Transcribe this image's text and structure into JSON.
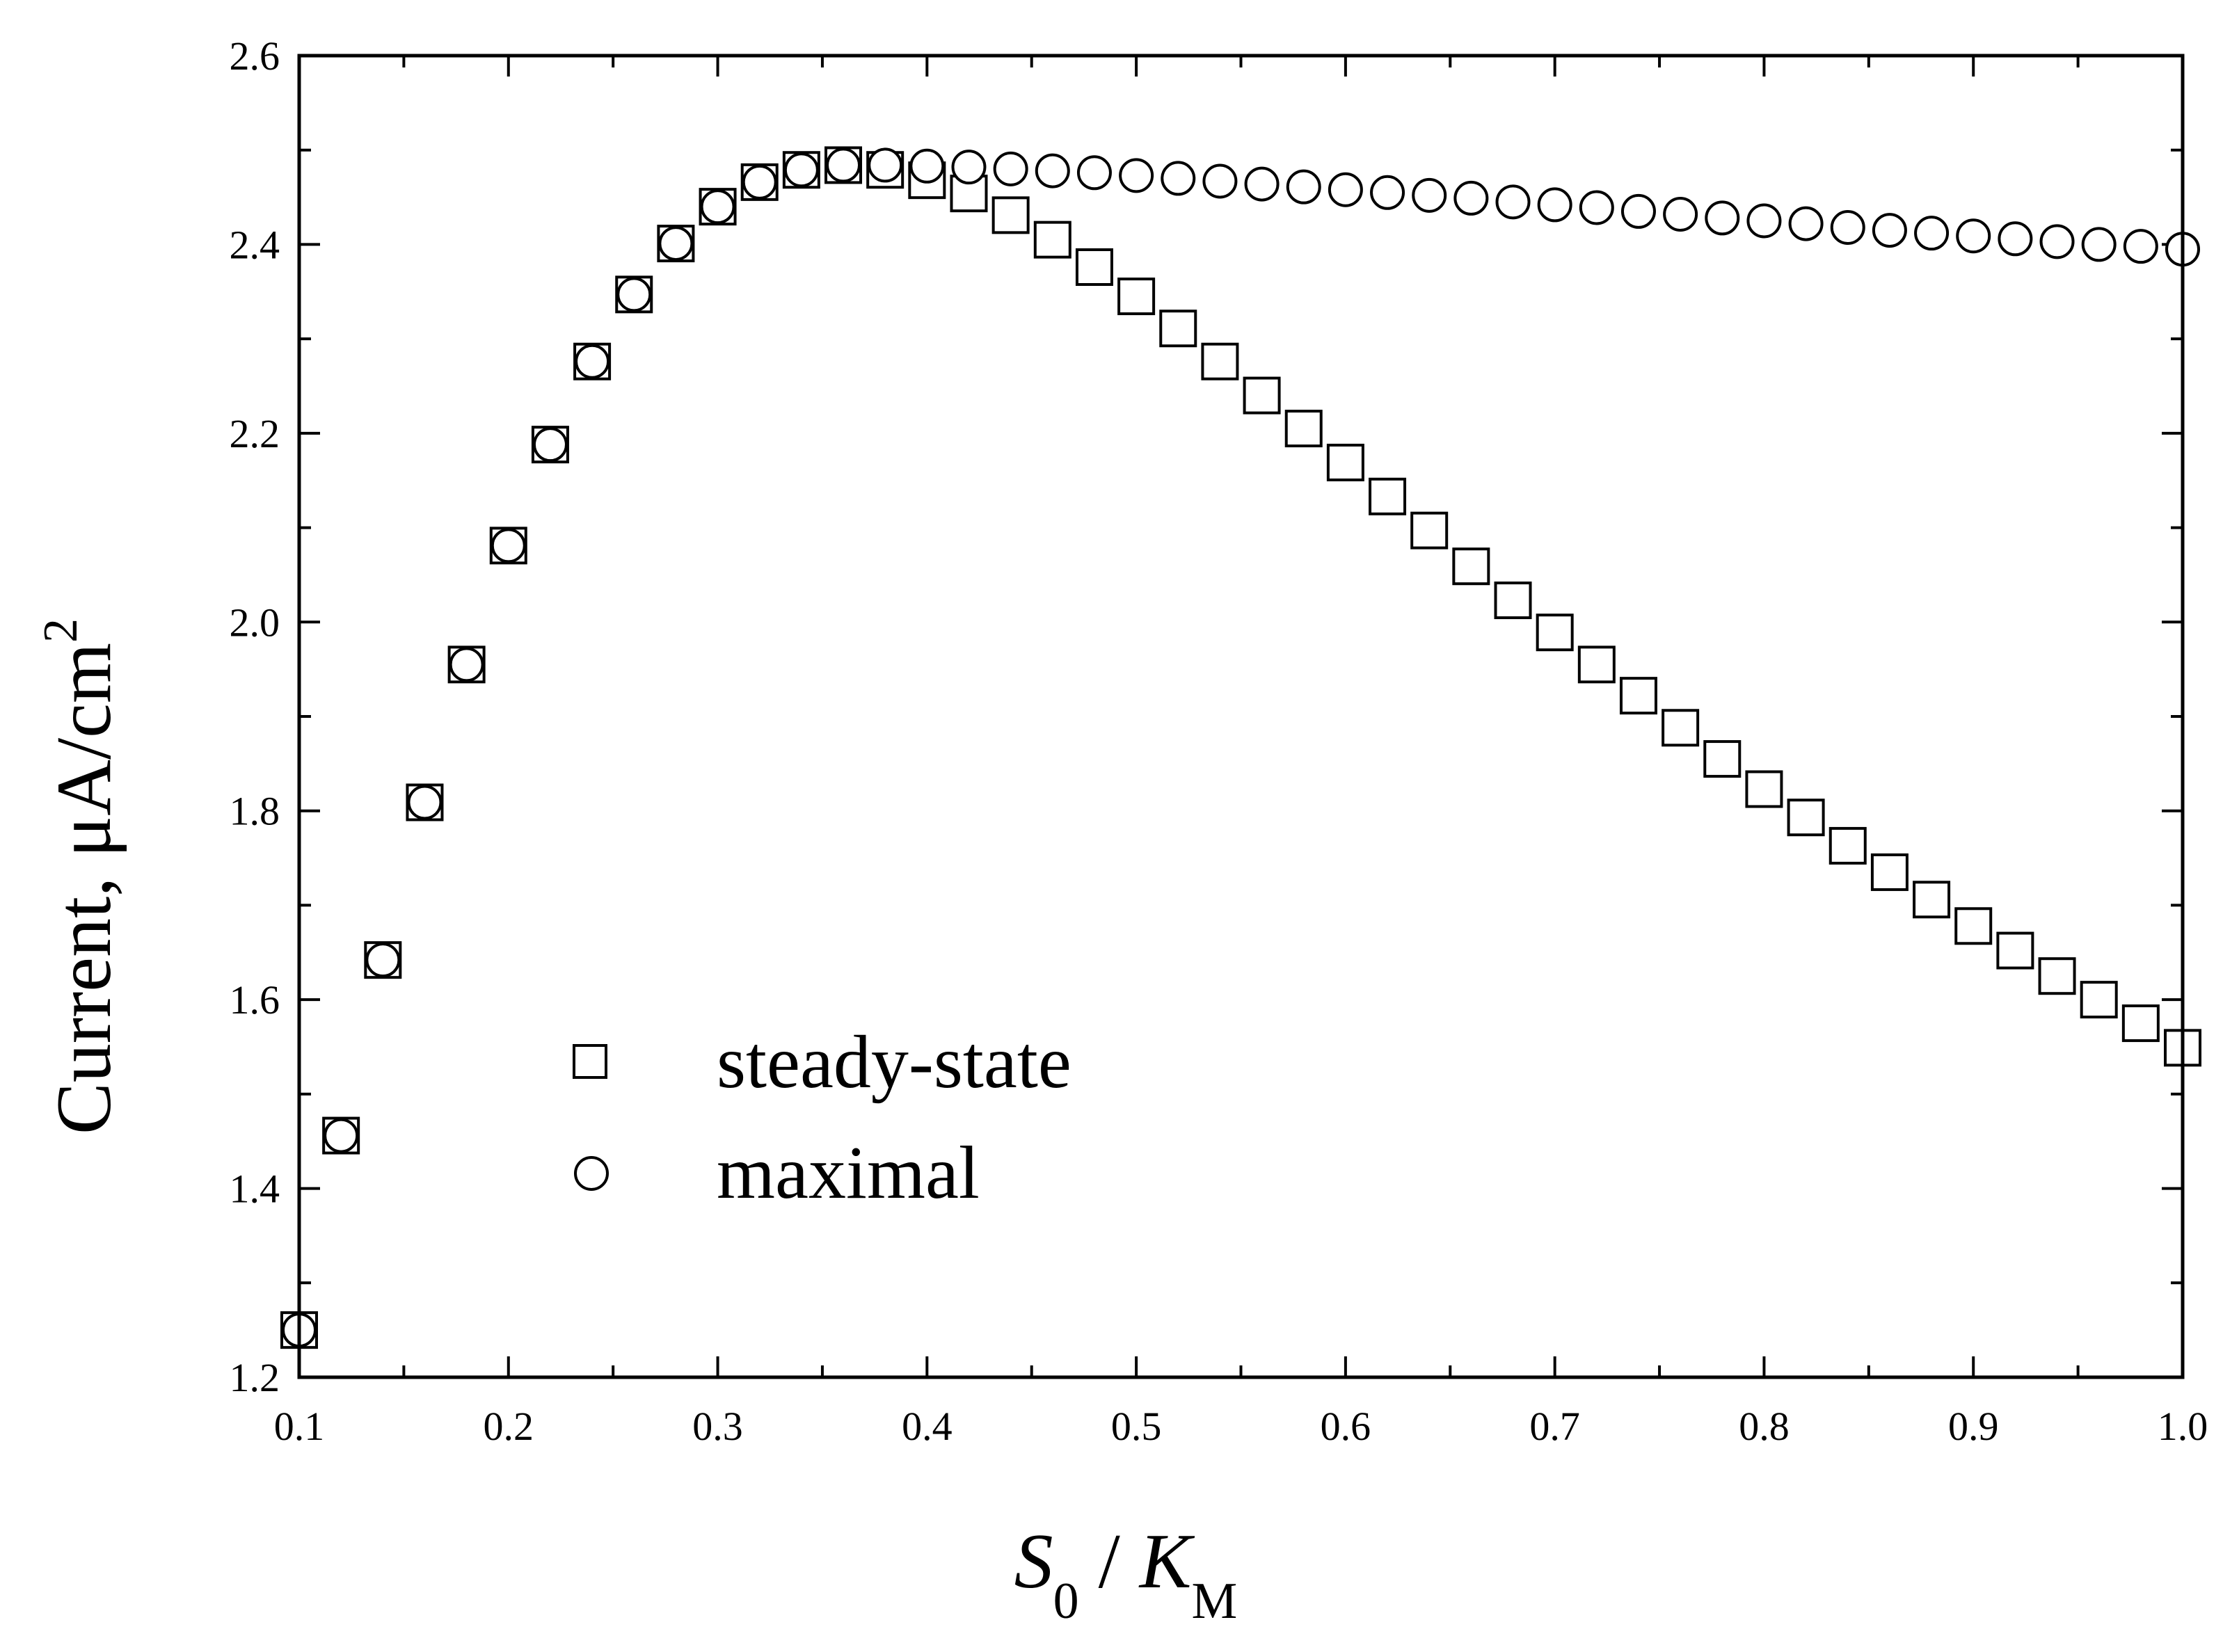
{
  "chart_data": {
    "type": "scatter",
    "xlabel": {
      "main1": "S",
      "sub1": "0",
      "sep": " / ",
      "main2": "K",
      "sub2": "M"
    },
    "ylabel": {
      "text": "Current, μA/cm",
      "sup": "2"
    },
    "xlim": [
      0.1,
      1.0
    ],
    "ylim": [
      1.2,
      2.6
    ],
    "xticks": [
      "0.1",
      "0.2",
      "0.3",
      "0.4",
      "0.5",
      "0.6",
      "0.7",
      "0.8",
      "0.9",
      "1.0"
    ],
    "yticks": [
      "1.2",
      "1.4",
      "1.6",
      "1.8",
      "2.0",
      "2.2",
      "2.4",
      "2.6"
    ],
    "grid": false,
    "legend_position": "bottom-left",
    "series": [
      {
        "name": "steady-state",
        "marker": "square",
        "x": [
          0.1,
          0.12,
          0.14,
          0.16,
          0.18,
          0.2,
          0.22,
          0.24,
          0.26,
          0.28,
          0.3,
          0.32,
          0.34,
          0.36,
          0.38,
          0.4,
          0.42,
          0.44,
          0.46,
          0.48,
          0.5,
          0.52,
          0.54,
          0.56,
          0.58,
          0.6,
          0.62,
          0.64,
          0.66,
          0.68,
          0.7,
          0.72,
          0.74,
          0.76,
          0.78,
          0.8,
          0.82,
          0.84,
          0.86,
          0.88,
          0.9,
          0.92,
          0.94,
          0.96,
          0.98,
          1.0
        ],
        "y": [
          1.25,
          1.456,
          1.642,
          1.809,
          1.955,
          2.081,
          2.188,
          2.276,
          2.347,
          2.401,
          2.44,
          2.466,
          2.479,
          2.484,
          2.479,
          2.468,
          2.454,
          2.431,
          2.405,
          2.376,
          2.345,
          2.311,
          2.276,
          2.24,
          2.205,
          2.169,
          2.133,
          2.097,
          2.059,
          2.023,
          1.989,
          1.955,
          1.922,
          1.888,
          1.855,
          1.823,
          1.793,
          1.763,
          1.735,
          1.706,
          1.678,
          1.652,
          1.625,
          1.6,
          1.575,
          1.549
        ]
      },
      {
        "name": "maximal",
        "marker": "circle",
        "x": [
          0.1,
          0.12,
          0.14,
          0.16,
          0.18,
          0.2,
          0.22,
          0.24,
          0.26,
          0.28,
          0.3,
          0.32,
          0.34,
          0.36,
          0.38,
          0.4,
          0.42,
          0.44,
          0.46,
          0.48,
          0.5,
          0.52,
          0.54,
          0.56,
          0.58,
          0.6,
          0.62,
          0.64,
          0.66,
          0.68,
          0.7,
          0.72,
          0.74,
          0.76,
          0.78,
          0.8,
          0.82,
          0.84,
          0.86,
          0.88,
          0.9,
          0.92,
          0.94,
          0.96,
          0.98,
          1.0
        ],
        "y": [
          1.25,
          1.456,
          1.642,
          1.809,
          1.955,
          2.081,
          2.188,
          2.276,
          2.347,
          2.401,
          2.44,
          2.466,
          2.479,
          2.484,
          2.484,
          2.483,
          2.482,
          2.48,
          2.478,
          2.476,
          2.473,
          2.47,
          2.467,
          2.464,
          2.461,
          2.458,
          2.455,
          2.452,
          2.449,
          2.445,
          2.442,
          2.439,
          2.435,
          2.432,
          2.428,
          2.425,
          2.422,
          2.418,
          2.415,
          2.412,
          2.409,
          2.406,
          2.403,
          2.4,
          2.398,
          2.395
        ]
      }
    ]
  }
}
